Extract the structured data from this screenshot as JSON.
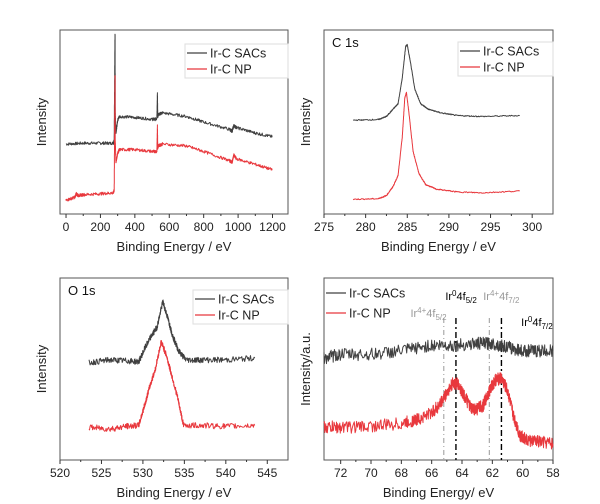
{
  "figure": {
    "colors": {
      "sacs": "#404040",
      "np": "#e8383d",
      "frame": "#555555",
      "ref_gray": "#999999",
      "ref_black": "#000000"
    }
  },
  "chart_data": [
    {
      "id": "survey",
      "type": "line",
      "title": "",
      "panel_label": "",
      "xlabel": "Binding Energy / eV",
      "ylabel": "Intensity",
      "xlim": [
        -35,
        1290
      ],
      "ylim": [
        0,
        100
      ],
      "xticks": [
        0,
        200,
        400,
        600,
        800,
        1000,
        1200
      ],
      "xtick_labels": [
        "0",
        "200",
        "400",
        "600",
        "800",
        "1000",
        "1200"
      ],
      "legend": {
        "position": "top-right",
        "entries": [
          "Ir-C SACs",
          "Ir-C NP"
        ]
      },
      "series": [
        {
          "name": "Ir-C SACs",
          "color_key": "sacs",
          "x": [
            0,
            100,
            200,
            275,
            280,
            284,
            285,
            286,
            290,
            300,
            310,
            400,
            500,
            528,
            531,
            533,
            536,
            560,
            700,
            800,
            950,
            965,
            975,
            990,
            1100,
            1200
          ],
          "y": [
            38,
            38.5,
            38.5,
            38.5,
            40,
            92,
            98,
            55,
            44,
            51,
            53,
            52.5,
            51.5,
            51.5,
            66,
            53,
            54,
            55,
            53,
            50,
            46,
            45,
            48,
            47,
            44,
            42
          ]
        },
        {
          "name": "Ir-C NP",
          "color_key": "np",
          "x": [
            0,
            50,
            60,
            70,
            100,
            200,
            275,
            280,
            284,
            285,
            286,
            290,
            300,
            310,
            400,
            500,
            528,
            531,
            533,
            536,
            560,
            700,
            800,
            950,
            965,
            975,
            990,
            1100,
            1200
          ],
          "y": [
            7.5,
            9,
            11,
            10,
            10.5,
            11,
            11.5,
            13,
            68,
            75,
            40,
            28,
            33,
            35,
            35,
            34,
            34,
            48,
            36,
            37,
            38,
            37,
            34,
            29,
            28,
            32,
            30,
            27,
            24
          ]
        }
      ]
    },
    {
      "id": "c1s",
      "type": "line",
      "title": "",
      "panel_label": "C 1s",
      "xlabel": "Binding Energy / eV",
      "ylabel": "Intensity",
      "xlim": [
        275,
        302.5
      ],
      "ylim": [
        0,
        100
      ],
      "xticks": [
        275,
        280,
        285,
        290,
        295,
        300
      ],
      "xtick_labels": [
        "275",
        "280",
        "285",
        "290",
        "295",
        "300"
      ],
      "legend": {
        "position": "top-right",
        "entries": [
          "Ir-C SACs",
          "Ir-C NP"
        ]
      },
      "series": [
        {
          "name": "Ir-C SACs",
          "color_key": "sacs",
          "x": [
            278.5,
            281.5,
            282.5,
            283.3,
            283.9,
            284.4,
            284.8,
            285.0,
            285.4,
            285.9,
            286.6,
            287.5,
            289,
            291,
            294,
            298.5
          ],
          "y": [
            51,
            51.3,
            53,
            57,
            60,
            74,
            91,
            92,
            82,
            68,
            60,
            57,
            55,
            53.5,
            53,
            53.5
          ]
        },
        {
          "name": "Ir-C NP",
          "color_key": "np",
          "x": [
            278.5,
            281.5,
            282.5,
            283.3,
            283.9,
            284.4,
            284.7,
            284.9,
            285.2,
            285.7,
            286.4,
            287.2,
            288.5,
            291,
            294,
            298.5
          ],
          "y": [
            8,
            8.3,
            10,
            15,
            21,
            42,
            63,
            66,
            55,
            34,
            22,
            16,
            13.5,
            12,
            11.5,
            12.5
          ]
        }
      ]
    },
    {
      "id": "o1s",
      "type": "line",
      "title": "",
      "panel_label": "O 1s",
      "xlabel": "Binding Energy / eV",
      "ylabel": "Intensity",
      "xlim": [
        520,
        547.5
      ],
      "ylim": [
        0,
        100
      ],
      "xticks": [
        520,
        525,
        530,
        535,
        540,
        545
      ],
      "xtick_labels": [
        "520",
        "525",
        "530",
        "535",
        "540",
        "545"
      ],
      "legend": {
        "position": "top-right",
        "entries": [
          "Ir-C SACs",
          "Ir-C NP"
        ]
      },
      "series": [
        {
          "name": "Ir-C SACs",
          "color_key": "sacs",
          "x": [
            523.5,
            526,
            528,
            529.5,
            530.3,
            531.0,
            531.7,
            532.4,
            533.0,
            533.6,
            534.3,
            535.2,
            537,
            540,
            543.5
          ],
          "y": [
            53.5,
            55,
            54.5,
            54,
            62,
            68,
            73,
            87,
            78,
            68,
            60,
            55,
            55,
            55,
            56
          ]
        },
        {
          "name": "Ir-C NP",
          "color_key": "np",
          "x": [
            523.5,
            526,
            528,
            529.5,
            530.2,
            530.8,
            531.5,
            532.2,
            532.8,
            533.5,
            534.2,
            534.9,
            537,
            540,
            543.5
          ],
          "y": [
            18,
            17,
            18.5,
            19,
            30,
            40,
            50,
            65,
            58,
            46,
            34,
            19,
            19,
            18.5,
            19
          ]
        }
      ]
    },
    {
      "id": "ir4f",
      "type": "line",
      "title": "",
      "panel_label": "",
      "xlabel": "Binding Energy/ eV",
      "ylabel": "Intensity/a.u.",
      "xlim": [
        73.1,
        58
      ],
      "ylim": [
        0,
        100
      ],
      "xticks": [
        72,
        70,
        68,
        66,
        64,
        62,
        60,
        58
      ],
      "xtick_labels": [
        "72",
        "70",
        "68",
        "66",
        "64",
        "62",
        "60",
        "58"
      ],
      "legend": {
        "position": "top-left",
        "entries": [
          "Ir-C SACs",
          "Ir-C NP"
        ]
      },
      "reference_lines": [
        {
          "x": 65.2,
          "label": "Ir4+4f5/2",
          "color_key": "ref_gray"
        },
        {
          "x": 64.4,
          "label": "Ir04f5/2",
          "color_key": "ref_black"
        },
        {
          "x": 62.2,
          "label": "Ir4+4f7/2",
          "color_key": "ref_gray"
        },
        {
          "x": 61.4,
          "label": "Ir04f7/2",
          "color_key": "ref_black"
        }
      ],
      "annotations": [
        {
          "text": "Ir",
          "sup": "4+",
          "main": "4f",
          "sub": "5/2",
          "color_key": "ref_gray",
          "anchor_x": 67.4
        },
        {
          "text": "Ir",
          "sup": "0",
          "main": "4f",
          "sub": "5/2",
          "color_key": "ref_black",
          "anchor_x": 65.1
        },
        {
          "text": "Ir",
          "sup": "4+",
          "main": "4f",
          "sub": "7/2",
          "color_key": "ref_gray",
          "anchor_x": 62.6
        },
        {
          "text": "Ir",
          "sup": "0",
          "main": "4f",
          "sub": "7/2",
          "color_key": "ref_black",
          "anchor_x": 60.1
        }
      ],
      "series": [
        {
          "name": "Ir-C SACs",
          "color_key": "sacs",
          "x": [
            73.1,
            72,
            70,
            68,
            66,
            64.5,
            63,
            62,
            61,
            60,
            59,
            58
          ],
          "y": [
            56,
            58,
            58,
            60,
            63,
            63,
            64,
            64,
            62,
            60,
            60,
            60
          ]
        },
        {
          "name": "Ir-C NP",
          "color_key": "np",
          "x": [
            73.1,
            72,
            70,
            68,
            67,
            66,
            65.5,
            65,
            64.6,
            64.3,
            63.9,
            63.4,
            63,
            62.6,
            62.2,
            61.8,
            61.4,
            61.0,
            60.6,
            60.2,
            59.8,
            59,
            58
          ],
          "y": [
            18,
            18,
            18.5,
            20,
            22,
            26,
            30,
            37,
            42,
            42,
            36,
            28,
            28,
            30,
            38,
            44,
            45,
            38,
            24,
            14,
            11,
            10,
            9
          ]
        }
      ]
    }
  ]
}
